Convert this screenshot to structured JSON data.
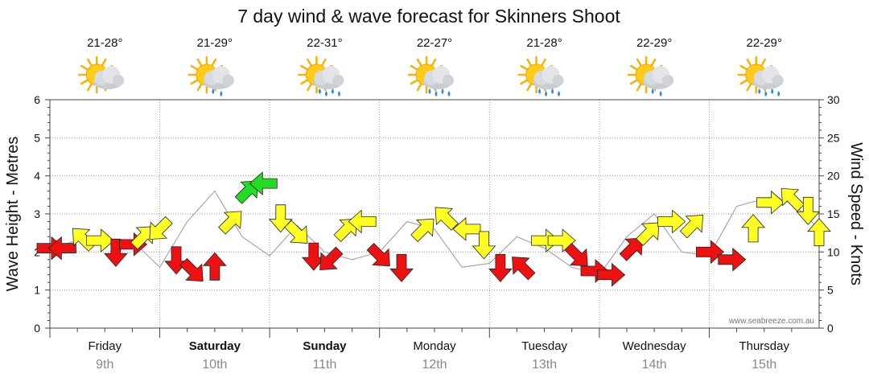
{
  "chart_data": {
    "type": "line",
    "title": "7 day wind & wave forecast for Skinners Shoot",
    "ylabel_left": "Wave Height - Metres",
    "ylabel_right": "Wind Speed - Knots",
    "ylim_left": [
      0,
      6
    ],
    "ylim_right": [
      0,
      30
    ],
    "yticks_left": [
      "0",
      "1",
      "2",
      "3",
      "4",
      "5",
      "6"
    ],
    "yticks_right": [
      "0",
      "5",
      "10",
      "15",
      "20",
      "25",
      "30"
    ],
    "grid": true,
    "credit": "www.seabreeze.com.au",
    "days": [
      {
        "name": "Friday",
        "date": "9th",
        "bold": false,
        "temp": "21-28°",
        "weather": "partly-cloudy-icon"
      },
      {
        "name": "Saturday",
        "date": "10th",
        "bold": true,
        "temp": "21-29°",
        "weather": "showers-icon"
      },
      {
        "name": "Sunday",
        "date": "11th",
        "bold": true,
        "temp": "22-31°",
        "weather": "rain-icon"
      },
      {
        "name": "Monday",
        "date": "12th",
        "bold": false,
        "temp": "22-27°",
        "weather": "rain-icon"
      },
      {
        "name": "Tuesday",
        "date": "13th",
        "bold": false,
        "temp": "21-28°",
        "weather": "rain-icon"
      },
      {
        "name": "Wednesday",
        "date": "14th",
        "bold": false,
        "temp": "22-29°",
        "weather": "showers-icon"
      },
      {
        "name": "Thursday",
        "date": "15th",
        "bold": false,
        "temp": "22-29°",
        "weather": "rain-icon"
      }
    ],
    "x_unit": "days from start of Friday 9th",
    "series": [
      {
        "name": "Wave Height",
        "axis": "left",
        "x": [
          0.0,
          0.25,
          0.5,
          0.75,
          1.0,
          1.25,
          1.5,
          1.75,
          2.0,
          2.25,
          2.5,
          2.75,
          3.0,
          3.25,
          3.5,
          3.75,
          4.0,
          4.25,
          4.5,
          4.75,
          5.0,
          5.25,
          5.5,
          5.75,
          6.0,
          6.25,
          6.5,
          6.75,
          7.0
        ],
        "y": [
          2.1,
          2.3,
          2.2,
          2.3,
          1.6,
          2.8,
          3.6,
          2.4,
          1.9,
          2.7,
          2.0,
          1.8,
          2.0,
          2.8,
          2.6,
          1.6,
          1.7,
          2.4,
          2.1,
          1.6,
          1.4,
          2.4,
          3.0,
          2.0,
          1.9,
          3.2,
          3.4,
          3.3,
          2.6
        ]
      }
    ],
    "wind_arrows": [
      {
        "x": 0.0,
        "y": 2.1,
        "dir": "right",
        "color": "red"
      },
      {
        "x": 0.12,
        "y": 2.1,
        "dir": "left",
        "color": "red"
      },
      {
        "x": 0.3,
        "y": 2.35,
        "dir": "up-left",
        "color": "yellow"
      },
      {
        "x": 0.45,
        "y": 2.3,
        "dir": "right",
        "color": "yellow"
      },
      {
        "x": 0.6,
        "y": 2.0,
        "dir": "down",
        "color": "red"
      },
      {
        "x": 0.75,
        "y": 2.2,
        "dir": "right",
        "color": "red"
      },
      {
        "x": 0.85,
        "y": 2.4,
        "dir": "up-right",
        "color": "yellow"
      },
      {
        "x": 1.0,
        "y": 2.6,
        "dir": "down-left",
        "color": "yellow"
      },
      {
        "x": 1.15,
        "y": 1.8,
        "dir": "down",
        "color": "red"
      },
      {
        "x": 1.3,
        "y": 1.5,
        "dir": "down-right",
        "color": "red"
      },
      {
        "x": 1.5,
        "y": 1.6,
        "dir": "up",
        "color": "red"
      },
      {
        "x": 1.65,
        "y": 2.8,
        "dir": "up-right",
        "color": "yellow"
      },
      {
        "x": 1.8,
        "y": 3.6,
        "dir": "up-right",
        "color": "green"
      },
      {
        "x": 1.95,
        "y": 3.8,
        "dir": "left",
        "color": "green"
      },
      {
        "x": 2.1,
        "y": 2.9,
        "dir": "down",
        "color": "yellow"
      },
      {
        "x": 2.25,
        "y": 2.5,
        "dir": "down-right",
        "color": "yellow"
      },
      {
        "x": 2.4,
        "y": 1.9,
        "dir": "down",
        "color": "red"
      },
      {
        "x": 2.55,
        "y": 1.8,
        "dir": "down-left",
        "color": "red"
      },
      {
        "x": 2.7,
        "y": 2.6,
        "dir": "up-right",
        "color": "yellow"
      },
      {
        "x": 2.85,
        "y": 2.8,
        "dir": "left",
        "color": "yellow"
      },
      {
        "x": 3.0,
        "y": 1.9,
        "dir": "down-right",
        "color": "red"
      },
      {
        "x": 3.2,
        "y": 1.6,
        "dir": "down",
        "color": "red"
      },
      {
        "x": 3.4,
        "y": 2.6,
        "dir": "up-right",
        "color": "yellow"
      },
      {
        "x": 3.6,
        "y": 2.9,
        "dir": "up-left",
        "color": "yellow"
      },
      {
        "x": 3.8,
        "y": 2.6,
        "dir": "left",
        "color": "yellow"
      },
      {
        "x": 3.95,
        "y": 2.2,
        "dir": "down",
        "color": "yellow"
      },
      {
        "x": 4.1,
        "y": 1.6,
        "dir": "down",
        "color": "red"
      },
      {
        "x": 4.3,
        "y": 1.6,
        "dir": "up-left",
        "color": "red"
      },
      {
        "x": 4.5,
        "y": 2.3,
        "dir": "right",
        "color": "yellow"
      },
      {
        "x": 4.65,
        "y": 2.3,
        "dir": "right",
        "color": "yellow"
      },
      {
        "x": 4.8,
        "y": 1.9,
        "dir": "down-right",
        "color": "red"
      },
      {
        "x": 4.95,
        "y": 1.5,
        "dir": "right",
        "color": "red"
      },
      {
        "x": 5.1,
        "y": 1.4,
        "dir": "right",
        "color": "red"
      },
      {
        "x": 5.3,
        "y": 2.1,
        "dir": "up-right",
        "color": "red"
      },
      {
        "x": 5.45,
        "y": 2.5,
        "dir": "up-right",
        "color": "yellow"
      },
      {
        "x": 5.65,
        "y": 2.8,
        "dir": "right",
        "color": "yellow"
      },
      {
        "x": 5.85,
        "y": 2.7,
        "dir": "up-right",
        "color": "yellow"
      },
      {
        "x": 6.0,
        "y": 2.0,
        "dir": "right",
        "color": "red"
      },
      {
        "x": 6.2,
        "y": 1.8,
        "dir": "right",
        "color": "red"
      },
      {
        "x": 6.4,
        "y": 2.6,
        "dir": "up",
        "color": "yellow"
      },
      {
        "x": 6.55,
        "y": 3.3,
        "dir": "right",
        "color": "yellow"
      },
      {
        "x": 6.75,
        "y": 3.4,
        "dir": "up-left",
        "color": "yellow"
      },
      {
        "x": 6.9,
        "y": 3.1,
        "dir": "down",
        "color": "yellow"
      },
      {
        "x": 7.0,
        "y": 2.5,
        "dir": "up",
        "color": "yellow"
      }
    ],
    "colors": {
      "red": "#ee1111",
      "yellow": "#ffff22",
      "green": "#22dd22",
      "line": "#999999",
      "grid": "#999999"
    }
  }
}
